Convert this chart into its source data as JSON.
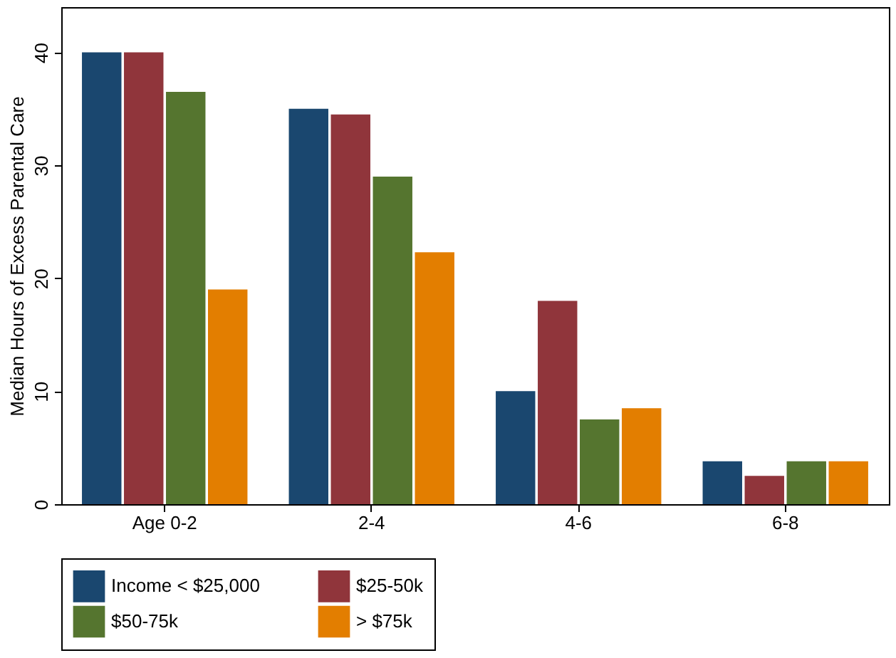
{
  "chart_data": {
    "type": "bar",
    "ylabel": "Median Hours of Excess Parental Care",
    "categories": [
      "Age 0-2",
      "2-4",
      "4-6",
      "6-8"
    ],
    "series": [
      {
        "name": "Income < $25,000",
        "color": "#1a476f",
        "values": [
          40,
          35,
          10,
          3.8
        ]
      },
      {
        "name": "$25-50k",
        "color": "#90353b",
        "values": [
          40,
          34.5,
          18,
          2.5
        ]
      },
      {
        "name": "$50-75k",
        "color": "#55752f",
        "values": [
          36.5,
          29,
          7.5,
          3.8
        ]
      },
      {
        "name": "> $75k",
        "color": "#e37e00",
        "values": [
          19,
          22.3,
          8.5,
          3.8
        ]
      }
    ],
    "ylim": [
      0,
      44
    ],
    "yticks": [
      0,
      10,
      20,
      30,
      40
    ],
    "grid": false,
    "legend": "bottom"
  }
}
